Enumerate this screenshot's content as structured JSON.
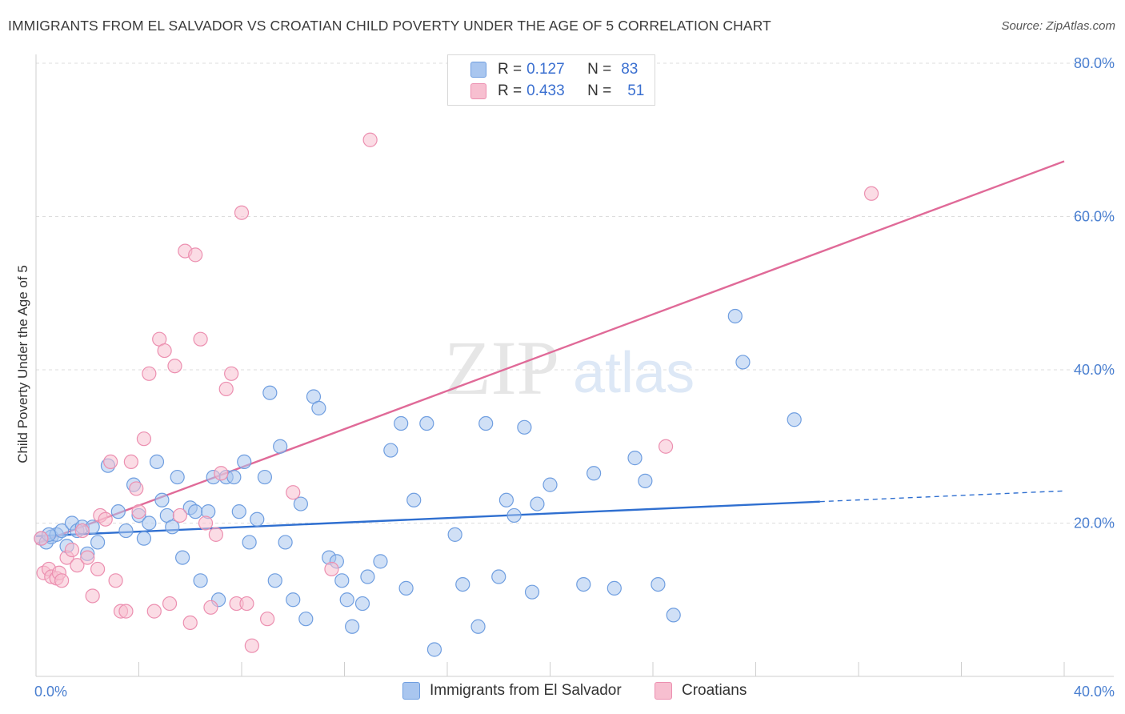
{
  "title": "IMMIGRANTS FROM EL SALVADOR VS CROATIAN CHILD POVERTY UNDER THE AGE OF 5 CORRELATION CHART",
  "source": "Source: ZipAtlas.com",
  "watermark": {
    "zip": "ZIP",
    "atlas": "atlas"
  },
  "colors": {
    "blue_fill": "#a9c6ef",
    "blue_stroke": "#6f9ee0",
    "blue_line": "#2f6fd0",
    "pink_fill": "#f7bfd0",
    "pink_stroke": "#ec8fb0",
    "pink_line": "#e06a98",
    "tick": "#4a7fd0",
    "grid": "#dddddd"
  },
  "legend": {
    "rows": [
      {
        "r_label": "R =",
        "r_value": "0.127",
        "n_label": "N =",
        "n_value": "83",
        "color": "#a9c6ef"
      },
      {
        "r_label": "R =",
        "r_value": "0.433",
        "n_label": "N =",
        "n_value": "51",
        "color": "#f7bfd0"
      }
    ]
  },
  "bottom_legend": [
    {
      "label": "Immigrants from El Salvador",
      "color": "#a9c6ef"
    },
    {
      "label": "Croatians",
      "color": "#f7bfd0"
    }
  ],
  "chart_data": {
    "type": "scatter",
    "title": "IMMIGRANTS FROM EL SALVADOR VS CROATIAN CHILD POVERTY UNDER THE AGE OF 5 CORRELATION CHART",
    "xlabel": "",
    "ylabel": "Child Poverty Under the Age of 5",
    "xlim": [
      0,
      40
    ],
    "ylim": [
      0,
      80
    ],
    "x_tick_labels": [
      {
        "value": 0,
        "label": "0.0%"
      },
      {
        "value": 40,
        "label": "40.0%"
      }
    ],
    "y_tick_labels": [
      {
        "value": 20,
        "label": "20.0%"
      },
      {
        "value": 40,
        "label": "40.0%"
      },
      {
        "value": 60,
        "label": "60.0%"
      },
      {
        "value": 80,
        "label": "80.0%"
      }
    ],
    "grid": true,
    "legend_placement": "top-center",
    "series": [
      {
        "name": "Immigrants from El Salvador",
        "R": 0.127,
        "N": 83,
        "trend": {
          "x0": 0,
          "y0": 18.3,
          "x1": 30.5,
          "y1": 22.8,
          "dashed_to_x": 40,
          "dashed_to_y": 24.2
        },
        "points": [
          [
            0.2,
            18.0
          ],
          [
            0.4,
            17.5
          ],
          [
            0.6,
            18.2
          ],
          [
            0.8,
            18.5
          ],
          [
            1.0,
            19.0
          ],
          [
            1.2,
            17.0
          ],
          [
            1.4,
            20.0
          ],
          [
            1.6,
            19.0
          ],
          [
            1.8,
            19.5
          ],
          [
            2.0,
            16.0
          ],
          [
            2.2,
            19.5
          ],
          [
            2.4,
            17.5
          ],
          [
            2.8,
            27.5
          ],
          [
            3.2,
            21.5
          ],
          [
            3.5,
            19.0
          ],
          [
            3.8,
            25.0
          ],
          [
            4.0,
            21.0
          ],
          [
            4.2,
            18.0
          ],
          [
            4.4,
            20.0
          ],
          [
            4.7,
            28.0
          ],
          [
            4.9,
            23.0
          ],
          [
            5.1,
            21.0
          ],
          [
            5.3,
            19.5
          ],
          [
            5.5,
            26.0
          ],
          [
            5.7,
            15.5
          ],
          [
            6.0,
            22.0
          ],
          [
            6.2,
            21.5
          ],
          [
            6.4,
            12.5
          ],
          [
            6.7,
            21.5
          ],
          [
            6.9,
            26.0
          ],
          [
            7.1,
            10.0
          ],
          [
            7.4,
            26.0
          ],
          [
            7.7,
            26.0
          ],
          [
            7.9,
            21.5
          ],
          [
            8.1,
            28.0
          ],
          [
            8.3,
            17.5
          ],
          [
            8.6,
            20.5
          ],
          [
            8.9,
            26.0
          ],
          [
            9.1,
            37.0
          ],
          [
            9.3,
            12.5
          ],
          [
            9.5,
            30.0
          ],
          [
            9.7,
            17.5
          ],
          [
            10.0,
            10.0
          ],
          [
            10.3,
            22.5
          ],
          [
            10.5,
            7.5
          ],
          [
            10.8,
            36.5
          ],
          [
            11.0,
            35.0
          ],
          [
            11.4,
            15.5
          ],
          [
            11.7,
            15.0
          ],
          [
            11.9,
            12.5
          ],
          [
            12.1,
            10.0
          ],
          [
            12.3,
            6.5
          ],
          [
            12.7,
            9.5
          ],
          [
            12.9,
            13.0
          ],
          [
            13.4,
            15.0
          ],
          [
            13.8,
            29.5
          ],
          [
            14.2,
            33.0
          ],
          [
            14.4,
            11.5
          ],
          [
            14.7,
            23.0
          ],
          [
            15.2,
            33.0
          ],
          [
            15.5,
            3.5
          ],
          [
            16.3,
            18.5
          ],
          [
            16.6,
            12.0
          ],
          [
            17.2,
            6.5
          ],
          [
            17.5,
            33.0
          ],
          [
            18.0,
            13.0
          ],
          [
            18.3,
            23.0
          ],
          [
            18.6,
            21.0
          ],
          [
            19.0,
            32.5
          ],
          [
            19.3,
            11.0
          ],
          [
            19.5,
            22.5
          ],
          [
            20.0,
            25.0
          ],
          [
            21.3,
            12.0
          ],
          [
            21.7,
            26.5
          ],
          [
            22.5,
            11.5
          ],
          [
            23.3,
            28.5
          ],
          [
            23.7,
            25.5
          ],
          [
            24.2,
            12.0
          ],
          [
            24.8,
            8.0
          ],
          [
            27.2,
            47.0
          ],
          [
            27.5,
            41.0
          ],
          [
            29.5,
            33.5
          ],
          [
            0.5,
            18.5
          ]
        ]
      },
      {
        "name": "Croatians",
        "R": 0.433,
        "N": 51,
        "trend": {
          "x0": 0,
          "y0": 17.3,
          "x1": 40,
          "y1": 67.2
        },
        "points": [
          [
            0.2,
            18.0
          ],
          [
            0.3,
            13.5
          ],
          [
            0.5,
            14.0
          ],
          [
            0.6,
            13.0
          ],
          [
            0.8,
            12.8
          ],
          [
            0.9,
            13.5
          ],
          [
            1.0,
            12.5
          ],
          [
            1.2,
            15.5
          ],
          [
            1.4,
            16.5
          ],
          [
            1.6,
            14.5
          ],
          [
            1.8,
            19.0
          ],
          [
            2.0,
            15.5
          ],
          [
            2.2,
            10.5
          ],
          [
            2.4,
            14.0
          ],
          [
            2.5,
            21.0
          ],
          [
            2.7,
            20.5
          ],
          [
            2.9,
            28.0
          ],
          [
            3.1,
            12.5
          ],
          [
            3.3,
            8.5
          ],
          [
            3.5,
            8.5
          ],
          [
            3.7,
            28.0
          ],
          [
            3.9,
            24.5
          ],
          [
            4.0,
            21.5
          ],
          [
            4.2,
            31.0
          ],
          [
            4.4,
            39.5
          ],
          [
            4.6,
            8.5
          ],
          [
            4.8,
            44.0
          ],
          [
            5.0,
            42.5
          ],
          [
            5.2,
            9.5
          ],
          [
            5.4,
            40.5
          ],
          [
            5.6,
            21.0
          ],
          [
            5.8,
            55.5
          ],
          [
            6.0,
            7.0
          ],
          [
            6.2,
            55.0
          ],
          [
            6.4,
            44.0
          ],
          [
            6.6,
            20.0
          ],
          [
            6.8,
            9.0
          ],
          [
            7.0,
            18.5
          ],
          [
            7.2,
            26.5
          ],
          [
            7.4,
            37.5
          ],
          [
            7.6,
            39.5
          ],
          [
            7.8,
            9.5
          ],
          [
            8.0,
            60.5
          ],
          [
            8.2,
            9.5
          ],
          [
            8.4,
            4.0
          ],
          [
            9.0,
            7.5
          ],
          [
            10.0,
            24.0
          ],
          [
            11.5,
            14.0
          ],
          [
            13.0,
            70.0
          ],
          [
            24.5,
            30.0
          ],
          [
            32.5,
            63.0
          ]
        ]
      }
    ]
  }
}
